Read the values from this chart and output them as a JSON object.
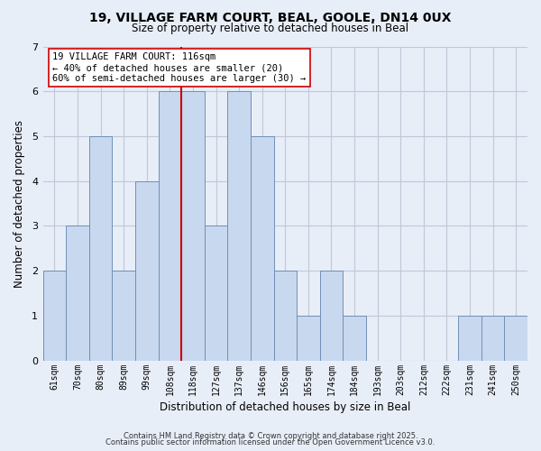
{
  "title_line1": "19, VILLAGE FARM COURT, BEAL, GOOLE, DN14 0UX",
  "title_line2": "Size of property relative to detached houses in Beal",
  "xlabel": "Distribution of detached houses by size in Beal",
  "ylabel": "Number of detached properties",
  "bin_labels": [
    "61sqm",
    "70sqm",
    "80sqm",
    "89sqm",
    "99sqm",
    "108sqm",
    "118sqm",
    "127sqm",
    "137sqm",
    "146sqm",
    "156sqm",
    "165sqm",
    "174sqm",
    "184sqm",
    "193sqm",
    "203sqm",
    "212sqm",
    "222sqm",
    "231sqm",
    "241sqm",
    "250sqm"
  ],
  "bar_heights": [
    2,
    3,
    5,
    2,
    4,
    6,
    6,
    3,
    6,
    5,
    2,
    1,
    2,
    1,
    0,
    0,
    0,
    0,
    1,
    1,
    1
  ],
  "bar_color": "#c8d8ee",
  "bar_edge_color": "#7090b8",
  "highlight_line_index": 6,
  "highlight_line_color": "#cc0000",
  "ylim": [
    0,
    7
  ],
  "yticks": [
    0,
    1,
    2,
    3,
    4,
    5,
    6,
    7
  ],
  "annotation_title": "19 VILLAGE FARM COURT: 116sqm",
  "annotation_line1": "← 40% of detached houses are smaller (20)",
  "annotation_line2": "60% of semi-detached houses are larger (30) →",
  "annotation_box_facecolor": "#ffffff",
  "annotation_box_edgecolor": "#cc0000",
  "footer_line1": "Contains HM Land Registry data © Crown copyright and database right 2025.",
  "footer_line2": "Contains public sector information licensed under the Open Government Licence v3.0.",
  "background_color": "#e8eef8",
  "plot_bg_color": "#e8eef8",
  "grid_color": "#c0c8d8"
}
